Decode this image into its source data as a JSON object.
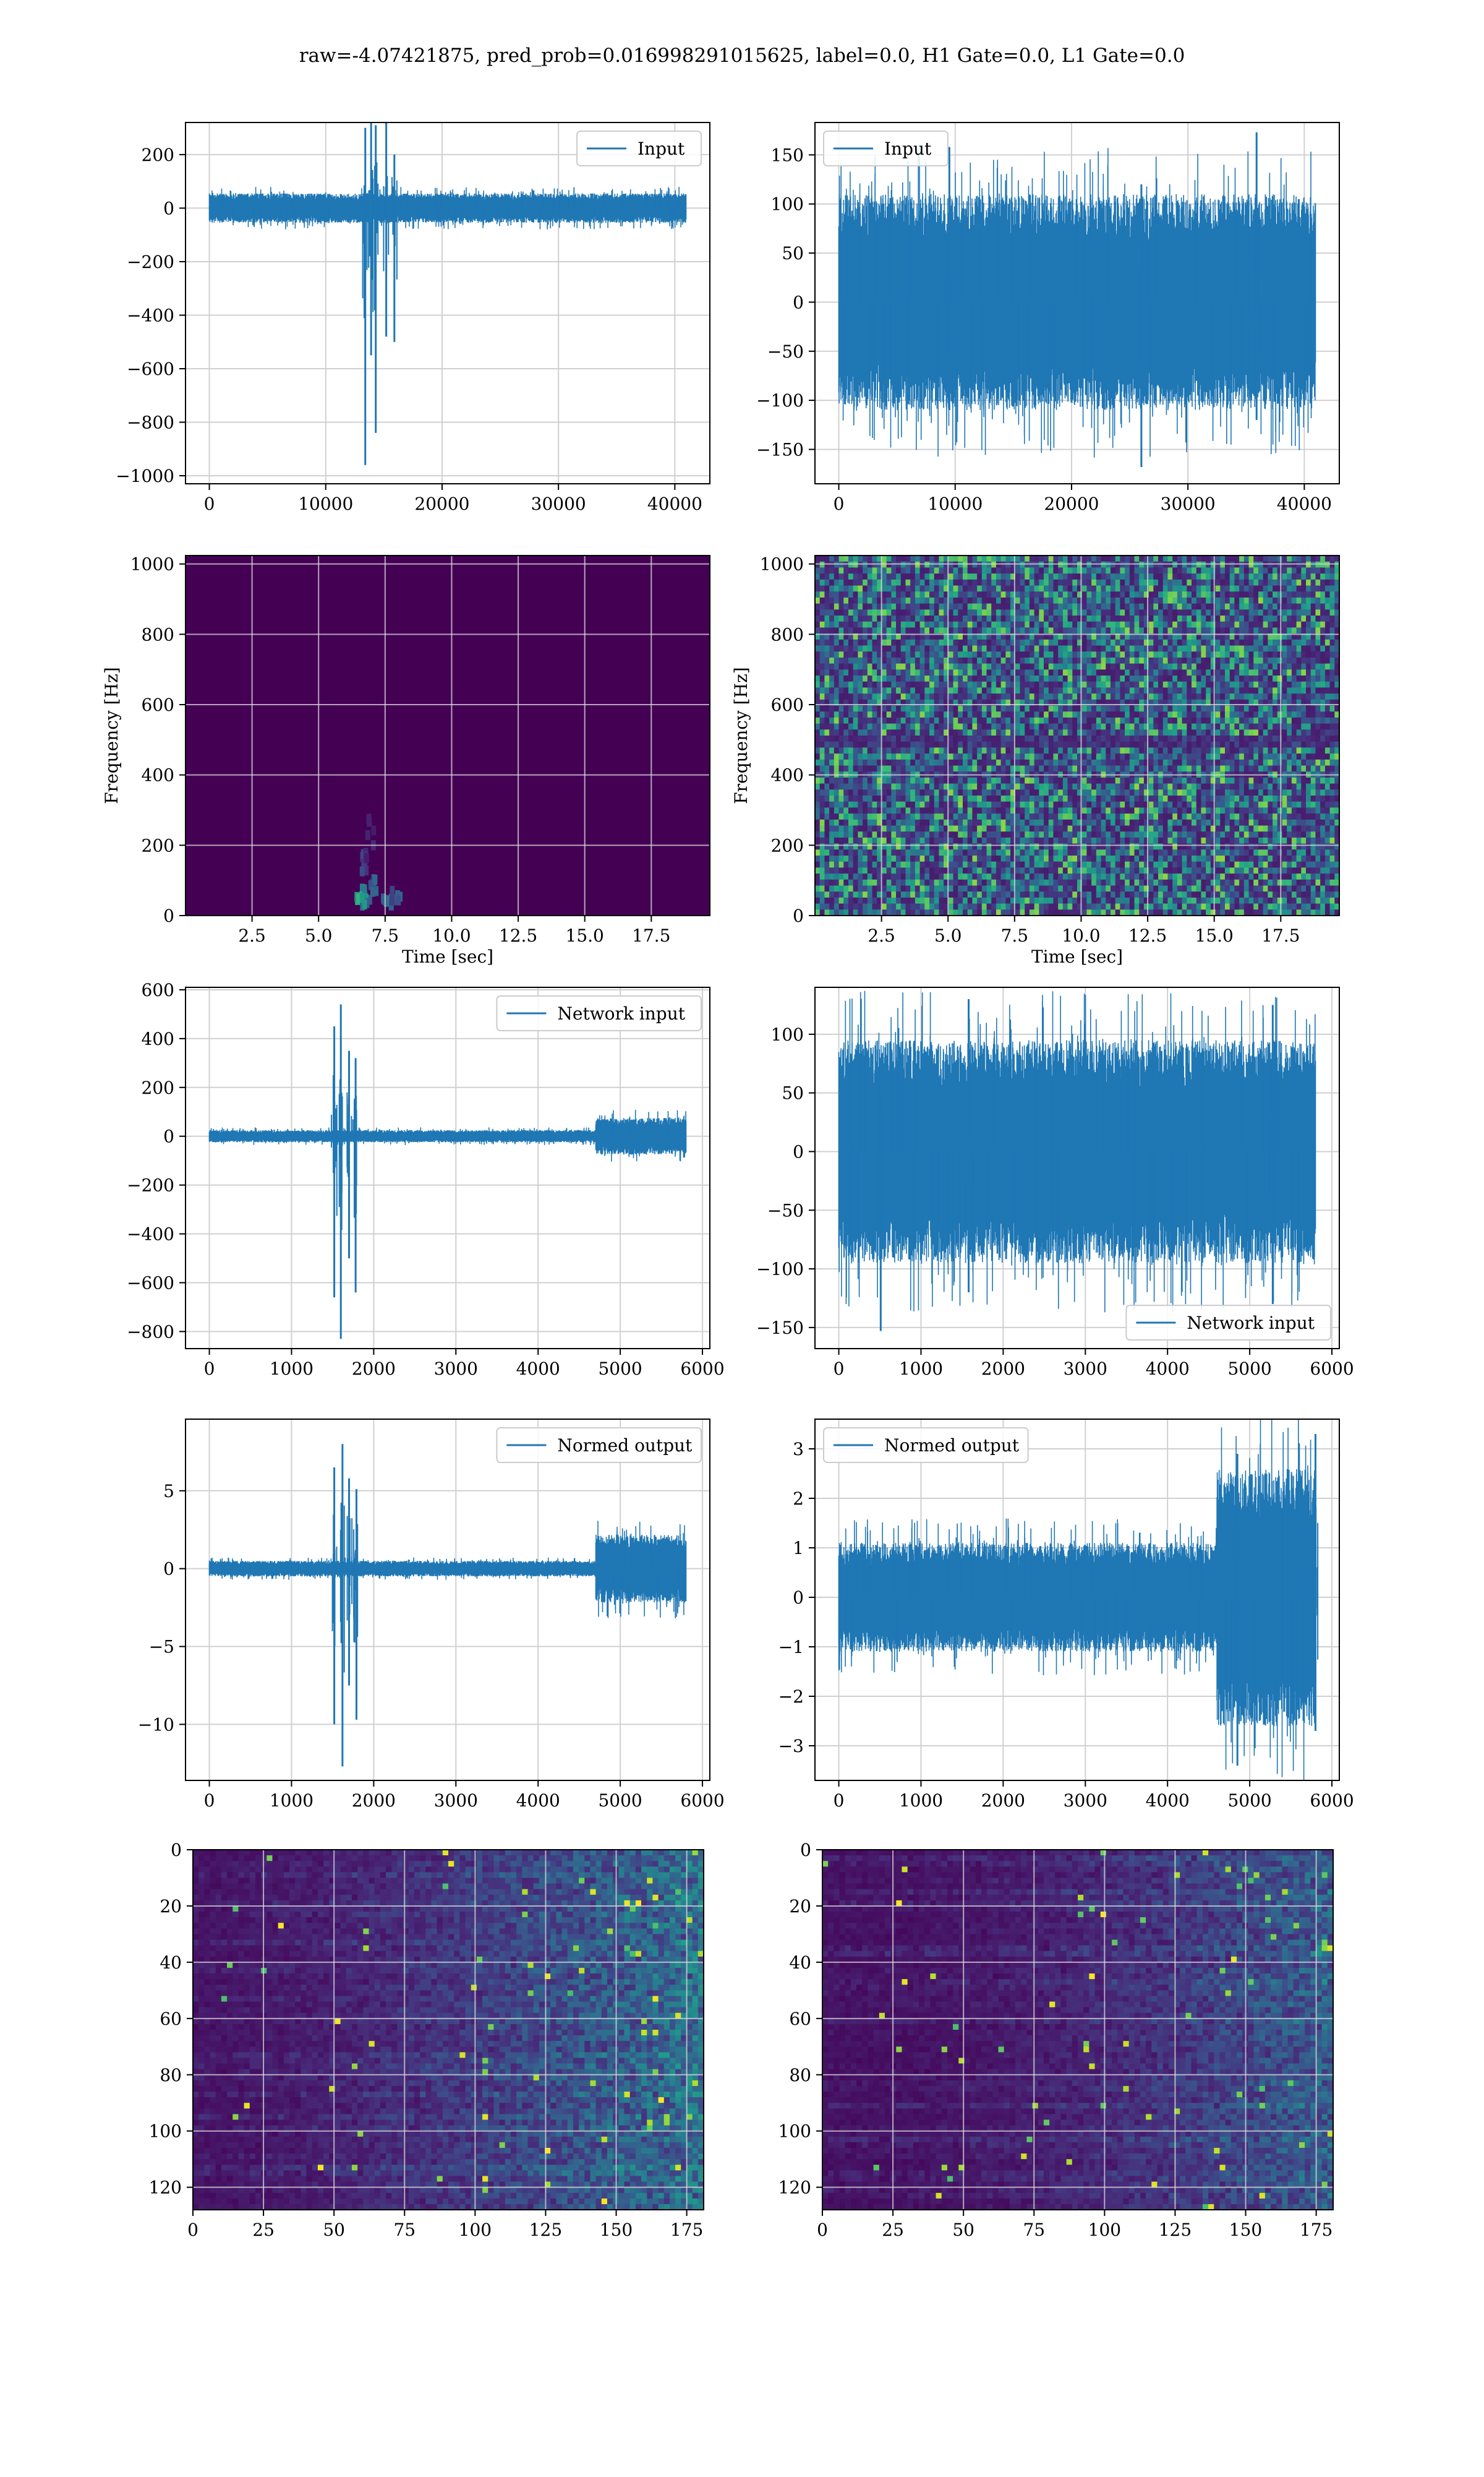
{
  "figure": {
    "suptitle": "raw=-4.07421875, pred_prob=0.016998291015625, label=0.0, H1 Gate=0.0, L1 Gate=0.0"
  },
  "colors": {
    "series": "#1f77b4",
    "grid": "#d0d0d0",
    "axis": "#000000"
  },
  "chart_data": [
    {
      "id": "input-h1",
      "type": "line",
      "legend": "Input",
      "legend_loc": "upper right",
      "xlim": [
        -2048,
        43008
      ],
      "ylim": [
        -1030,
        320
      ],
      "xticks": [
        0,
        10000,
        20000,
        30000,
        40000
      ],
      "yticks": [
        -1000,
        -800,
        -600,
        -400,
        -200,
        0,
        200
      ],
      "x_range": [
        0,
        40960
      ],
      "noise_amp": 55,
      "glitches": [
        [
          13400,
          -960,
          300
        ],
        [
          13900,
          -550,
          320
        ],
        [
          14300,
          -840,
          310
        ],
        [
          15200,
          -480,
          320
        ],
        [
          15900,
          -500,
          200
        ]
      ],
      "xlabel": "",
      "ylabel": ""
    },
    {
      "id": "input-l1",
      "type": "line",
      "legend": "Input",
      "legend_loc": "upper left",
      "xlim": [
        -2048,
        43008
      ],
      "ylim": [
        -185,
        183
      ],
      "xticks": [
        0,
        10000,
        20000,
        30000,
        40000
      ],
      "yticks": [
        -150,
        -100,
        -50,
        0,
        50,
        100,
        150
      ],
      "x_range": [
        0,
        40960
      ],
      "noise_amp": 110,
      "glitches": [
        [
          26000,
          -168,
          120
        ],
        [
          35900,
          -120,
          173
        ],
        [
          9500,
          -110,
          158
        ]
      ],
      "xlabel": "",
      "ylabel": ""
    },
    {
      "id": "spec-h1",
      "type": "heatmap",
      "colormap": "viridis",
      "variant": "quiet",
      "xlim": [
        0,
        19.7
      ],
      "ylim": [
        0,
        1024
      ],
      "xticks": [
        2.5,
        5.0,
        7.5,
        10.0,
        12.5,
        15.0,
        17.5
      ],
      "yticks": [
        0,
        200,
        400,
        600,
        800,
        1000
      ],
      "xlabel": "Time [sec]",
      "ylabel": "Frequency [Hz]"
    },
    {
      "id": "spec-l1",
      "type": "heatmap",
      "colormap": "viridis",
      "variant": "noisy",
      "xlim": [
        0,
        19.7
      ],
      "ylim": [
        0,
        1024
      ],
      "xticks": [
        2.5,
        5.0,
        7.5,
        10.0,
        12.5,
        15.0,
        17.5
      ],
      "yticks": [
        0,
        200,
        400,
        600,
        800,
        1000
      ],
      "xlabel": "Time [sec]",
      "ylabel": "Frequency [Hz]"
    },
    {
      "id": "netin-h1",
      "type": "line",
      "legend": "Network input",
      "legend_loc": "upper right",
      "xlim": [
        -290,
        6090
      ],
      "ylim": [
        -870,
        610
      ],
      "xticks": [
        0,
        1000,
        2000,
        3000,
        4000,
        5000,
        6000
      ],
      "yticks": [
        -800,
        -600,
        -400,
        -200,
        0,
        200,
        400,
        600
      ],
      "x_range": [
        0,
        5800
      ],
      "noise_amp": 25,
      "tail_from": 4700,
      "tail_amp": 75,
      "glitches": [
        [
          1520,
          -660,
          450
        ],
        [
          1600,
          -830,
          540
        ],
        [
          1700,
          -500,
          350
        ],
        [
          1780,
          -640,
          320
        ]
      ],
      "xlabel": "",
      "ylabel": ""
    },
    {
      "id": "netin-l1",
      "type": "line",
      "legend": "Network input",
      "legend_loc": "lower right",
      "xlim": [
        -290,
        6090
      ],
      "ylim": [
        -168,
        140
      ],
      "xticks": [
        0,
        1000,
        2000,
        3000,
        4000,
        5000,
        6000
      ],
      "yticks": [
        -150,
        -100,
        -50,
        0,
        50,
        100
      ],
      "x_range": [
        0,
        5800
      ],
      "noise_amp": 95,
      "glitches": [
        [
          510,
          -153,
          80
        ],
        [
          1580,
          -120,
          130
        ],
        [
          5280,
          -130,
          125
        ]
      ],
      "xlabel": "",
      "ylabel": ""
    },
    {
      "id": "normed-h1",
      "type": "line",
      "legend": "Normed output",
      "legend_loc": "upper right",
      "xlim": [
        -290,
        6090
      ],
      "ylim": [
        -13.6,
        9.6
      ],
      "xticks": [
        0,
        1000,
        2000,
        3000,
        4000,
        5000,
        6000
      ],
      "yticks": [
        -10,
        -5,
        0,
        5
      ],
      "x_range": [
        0,
        5800
      ],
      "noise_amp": 0.5,
      "tail_from": 4700,
      "tail_amp": 2.2,
      "glitches": [
        [
          1520,
          -10,
          6.5
        ],
        [
          1620,
          -12.7,
          8
        ],
        [
          1700,
          -7.5,
          5.8
        ],
        [
          1790,
          -9.7,
          5.1
        ]
      ],
      "xlabel": "",
      "ylabel": ""
    },
    {
      "id": "normed-l1",
      "type": "line",
      "legend": "Normed output",
      "legend_loc": "upper left",
      "xlim": [
        -290,
        6090
      ],
      "ylim": [
        -3.7,
        3.6
      ],
      "xticks": [
        0,
        1000,
        2000,
        3000,
        4000,
        5000,
        6000
      ],
      "yticks": [
        -3,
        -2,
        -1,
        0,
        1,
        2,
        3
      ],
      "x_range": [
        0,
        5800
      ],
      "noise_amp": 1.1,
      "tail_from": 4600,
      "tail_amp": 2.6,
      "glitches": [
        [
          4850,
          -3.4,
          2.9
        ],
        [
          5800,
          -2.7,
          3.3
        ]
      ],
      "xlabel": "",
      "ylabel": ""
    },
    {
      "id": "feat-h1",
      "type": "heatmap",
      "colormap": "viridis",
      "variant": "features",
      "xlim": [
        0,
        181
      ],
      "ylim": [
        128,
        0
      ],
      "xticks": [
        0,
        25,
        50,
        75,
        100,
        125,
        150,
        175
      ],
      "yticks": [
        0,
        20,
        40,
        60,
        80,
        100,
        120
      ],
      "xlabel": "",
      "ylabel": ""
    },
    {
      "id": "feat-l1",
      "type": "heatmap",
      "colormap": "viridis",
      "variant": "features2",
      "xlim": [
        0,
        181
      ],
      "ylim": [
        128,
        0
      ],
      "xticks": [
        0,
        25,
        50,
        75,
        100,
        125,
        150,
        175
      ],
      "yticks": [
        0,
        20,
        40,
        60,
        80,
        100,
        120
      ],
      "xlabel": "",
      "ylabel": ""
    }
  ]
}
